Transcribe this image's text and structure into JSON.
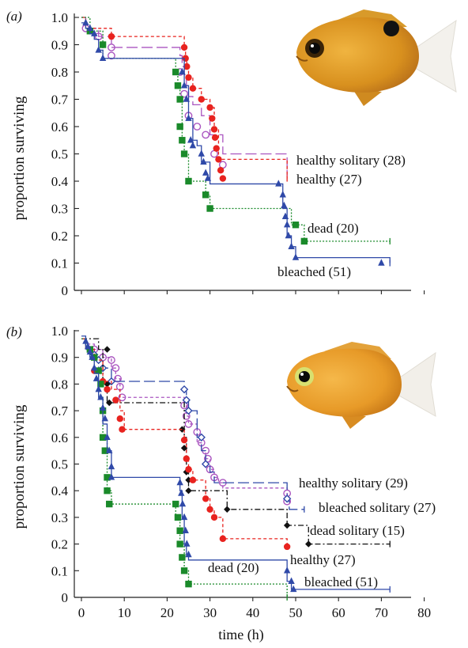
{
  "chart_data": [
    {
      "type": "line",
      "panel_label": "(a)",
      "ylabel": "proportion surviving",
      "ylim": [
        0,
        1.0
      ],
      "yticks": [
        "0",
        "0.1",
        "0.2",
        "0.3",
        "0.4",
        "0.5",
        "0.6",
        "0.7",
        "0.8",
        "0.9",
        "1.0"
      ],
      "xlim": [
        -2,
        80
      ],
      "grid": false,
      "series": [
        {
          "name": "healthy solitary (28)",
          "color": "#aa55c0",
          "dash": "14,5",
          "marker": "circle-open",
          "x": [
            0,
            1,
            4,
            7,
            23,
            23.5,
            24,
            24.5,
            25,
            26,
            28,
            30,
            33,
            48
          ],
          "y": [
            1.0,
            0.96,
            0.93,
            0.89,
            0.86,
            0.82,
            0.79,
            0.75,
            0.71,
            0.68,
            0.64,
            0.57,
            0.5,
            0.43
          ],
          "markers": [
            [
              1,
              0.96
            ],
            [
              4,
              0.93
            ],
            [
              7,
              0.89
            ],
            [
              7,
              0.86
            ],
            [
              23,
              0.8
            ],
            [
              24,
              0.72
            ],
            [
              25,
              0.64
            ],
            [
              27,
              0.6
            ],
            [
              29,
              0.57
            ],
            [
              31,
              0.5
            ],
            [
              33,
              0.46
            ]
          ]
        },
        {
          "name": "healthy (27)",
          "color": "#e8231f",
          "dash": "4,3",
          "marker": "circle-filled",
          "x": [
            0,
            1,
            7,
            24,
            24.3,
            24.6,
            25,
            26,
            28,
            30,
            31,
            32,
            48
          ],
          "y": [
            1.0,
            0.96,
            0.93,
            0.89,
            0.85,
            0.82,
            0.78,
            0.74,
            0.7,
            0.67,
            0.59,
            0.48,
            0.41
          ],
          "markers": [
            [
              7,
              0.93
            ],
            [
              24,
              0.89
            ],
            [
              24.3,
              0.85
            ],
            [
              24.6,
              0.82
            ],
            [
              25,
              0.78
            ],
            [
              26,
              0.74
            ],
            [
              28,
              0.7
            ],
            [
              30,
              0.67
            ],
            [
              30.5,
              0.63
            ],
            [
              31,
              0.59
            ],
            [
              31.2,
              0.56
            ],
            [
              31.5,
              0.52
            ],
            [
              32,
              0.48
            ],
            [
              32.5,
              0.44
            ],
            [
              33,
              0.41
            ]
          ]
        },
        {
          "name": "dead (20)",
          "color": "#1a8a2a",
          "dash": "2,2",
          "marker": "square-filled",
          "x": [
            0,
            2,
            5,
            22,
            22.5,
            23,
            23.5,
            24,
            25,
            29,
            30,
            49,
            50,
            52,
            72
          ],
          "y": [
            1.0,
            0.95,
            0.85,
            0.8,
            0.75,
            0.7,
            0.55,
            0.5,
            0.4,
            0.35,
            0.3,
            0.24,
            0.24,
            0.18,
            0.18
          ],
          "markers": [
            [
              2,
              0.95
            ],
            [
              5,
              0.9
            ],
            [
              22,
              0.8
            ],
            [
              22.5,
              0.75
            ],
            [
              23,
              0.7
            ],
            [
              23,
              0.6
            ],
            [
              23.5,
              0.55
            ],
            [
              24,
              0.5
            ],
            [
              25,
              0.4
            ],
            [
              29,
              0.35
            ],
            [
              30,
              0.3
            ],
            [
              50,
              0.24
            ],
            [
              52,
              0.18
            ]
          ]
        },
        {
          "name": "bleached (51)",
          "color": "#2f49a8",
          "dash": "",
          "marker": "triangle-filled",
          "x": [
            0,
            1,
            2,
            3,
            4,
            5,
            24,
            25,
            26,
            27,
            28,
            30,
            46,
            47,
            48,
            49,
            50,
            70,
            72
          ],
          "y": [
            0.98,
            0.96,
            0.94,
            0.92,
            0.88,
            0.85,
            0.75,
            0.63,
            0.55,
            0.53,
            0.47,
            0.39,
            0.39,
            0.3,
            0.2,
            0.16,
            0.12,
            0.12,
            0.1
          ],
          "markers": [
            [
              1,
              0.98
            ],
            [
              2,
              0.96
            ],
            [
              3,
              0.94
            ],
            [
              4,
              0.88
            ],
            [
              5,
              0.85
            ],
            [
              23.5,
              0.8
            ],
            [
              24,
              0.75
            ],
            [
              24.5,
              0.7
            ],
            [
              25,
              0.63
            ],
            [
              25.5,
              0.55
            ],
            [
              26,
              0.53
            ],
            [
              28,
              0.5
            ],
            [
              28.5,
              0.47
            ],
            [
              29,
              0.43
            ],
            [
              29.5,
              0.41
            ],
            [
              46,
              0.39
            ],
            [
              47,
              0.35
            ],
            [
              47.3,
              0.31
            ],
            [
              47.6,
              0.27
            ],
            [
              48,
              0.24
            ],
            [
              48.3,
              0.2
            ],
            [
              49,
              0.16
            ],
            [
              50,
              0.12
            ],
            [
              70,
              0.1
            ]
          ]
        }
      ],
      "annotations": [
        "healthy solitary (28)",
        "healthy (27)",
        "dead (20)",
        "bleached (51)"
      ]
    },
    {
      "type": "line",
      "panel_label": "(b)",
      "xlabel": "time (h)",
      "ylabel": "proportion surviving",
      "ylim": [
        0,
        1.0
      ],
      "yticks": [
        "0",
        "0.1",
        "0.2",
        "0.3",
        "0.4",
        "0.5",
        "0.6",
        "0.7",
        "0.8",
        "0.9",
        "1.0"
      ],
      "xlim": [
        -2,
        80
      ],
      "xticks": [
        "0",
        "10",
        "20",
        "30",
        "40",
        "50",
        "60",
        "70",
        "80"
      ],
      "grid": false,
      "series": [
        {
          "name": "healthy solitary (29)",
          "color": "#aa55c0",
          "dash": "4,3",
          "marker": "circle-open",
          "x": [
            0,
            1,
            3,
            5,
            7,
            8,
            9,
            24,
            24.5,
            25,
            27,
            28,
            29,
            30,
            31,
            32,
            33,
            48
          ],
          "y": [
            0.97,
            0.95,
            0.93,
            0.9,
            0.86,
            0.82,
            0.75,
            0.72,
            0.68,
            0.65,
            0.58,
            0.55,
            0.52,
            0.48,
            0.45,
            0.43,
            0.41,
            0.38
          ],
          "markers": [
            [
              3,
              0.93
            ],
            [
              5,
              0.9
            ],
            [
              7,
              0.89
            ],
            [
              8,
              0.86
            ],
            [
              8.5,
              0.82
            ],
            [
              9,
              0.79
            ],
            [
              9.5,
              0.75
            ],
            [
              24,
              0.72
            ],
            [
              24.5,
              0.68
            ],
            [
              25,
              0.65
            ],
            [
              27,
              0.62
            ],
            [
              28,
              0.58
            ],
            [
              29,
              0.55
            ],
            [
              29.5,
              0.52
            ],
            [
              30,
              0.48
            ],
            [
              31,
              0.45
            ],
            [
              33,
              0.43
            ],
            [
              48,
              0.39
            ],
            [
              48,
              0.36
            ]
          ]
        },
        {
          "name": "bleached solitary (27)",
          "color": "#2f49a8",
          "dash": "14,5",
          "marker": "diamond-open",
          "x": [
            0,
            1,
            2,
            3,
            4,
            7,
            24,
            24.5,
            25,
            27,
            28,
            29,
            30,
            31,
            48,
            48.5,
            52
          ],
          "y": [
            0.97,
            0.93,
            0.91,
            0.89,
            0.86,
            0.81,
            0.78,
            0.74,
            0.7,
            0.6,
            0.55,
            0.5,
            0.47,
            0.43,
            0.37,
            0.33,
            0.33
          ],
          "markers": [
            [
              3,
              0.91
            ],
            [
              4,
              0.89
            ],
            [
              5,
              0.86
            ],
            [
              7,
              0.81
            ],
            [
              24,
              0.78
            ],
            [
              24.5,
              0.74
            ],
            [
              25,
              0.7
            ],
            [
              28,
              0.6
            ],
            [
              29,
              0.5
            ],
            [
              48,
              0.37
            ]
          ]
        },
        {
          "name": "dead solitary (15)",
          "color": "#111111",
          "dash": "7,3,2,3",
          "marker": "diamond-filled",
          "x": [
            0,
            4,
            5,
            6,
            24,
            24.5,
            25,
            34,
            48,
            53,
            72
          ],
          "y": [
            0.97,
            0.93,
            0.8,
            0.73,
            0.6,
            0.47,
            0.4,
            0.33,
            0.27,
            0.2,
            0.2
          ],
          "markers": [
            [
              6,
              0.93
            ],
            [
              6,
              0.8
            ],
            [
              6.5,
              0.73
            ],
            [
              23.5,
              0.63
            ],
            [
              24,
              0.56
            ],
            [
              24.5,
              0.47
            ],
            [
              25,
              0.44
            ],
            [
              25,
              0.4
            ],
            [
              34,
              0.33
            ],
            [
              48,
              0.27
            ],
            [
              53,
              0.2
            ]
          ]
        },
        {
          "name": "healthy (27)",
          "color": "#e8231f",
          "dash": "4,3",
          "marker": "circle-filled",
          "x": [
            0,
            1,
            3,
            5,
            7,
            9,
            10,
            24,
            24.5,
            25,
            26,
            29,
            30,
            31,
            33,
            48
          ],
          "y": [
            0.97,
            0.93,
            0.89,
            0.81,
            0.78,
            0.7,
            0.63,
            0.59,
            0.52,
            0.48,
            0.44,
            0.37,
            0.33,
            0.3,
            0.22,
            0.19
          ],
          "markers": [
            [
              3,
              0.85
            ],
            [
              5,
              0.81
            ],
            [
              6,
              0.78
            ],
            [
              8,
              0.74
            ],
            [
              9,
              0.67
            ],
            [
              9.5,
              0.63
            ],
            [
              24,
              0.59
            ],
            [
              24.5,
              0.52
            ],
            [
              25,
              0.48
            ],
            [
              26,
              0.44
            ],
            [
              29,
              0.37
            ],
            [
              30,
              0.33
            ],
            [
              31,
              0.3
            ],
            [
              33,
              0.22
            ],
            [
              48,
              0.19
            ]
          ]
        },
        {
          "name": "dead (20)",
          "color": "#1a8a2a",
          "dash": "2,2",
          "marker": "square-filled",
          "x": [
            0,
            1,
            2,
            3,
            4,
            5,
            6,
            7,
            22,
            23,
            24,
            25,
            48
          ],
          "y": [
            0.97,
            0.93,
            0.9,
            0.85,
            0.75,
            0.6,
            0.4,
            0.35,
            0.3,
            0.2,
            0.1,
            0.05,
            0
          ],
          "markers": [
            [
              2,
              0.93
            ],
            [
              3,
              0.9
            ],
            [
              4,
              0.85
            ],
            [
              4.5,
              0.8
            ],
            [
              5,
              0.7
            ],
            [
              5,
              0.6
            ],
            [
              5.5,
              0.55
            ],
            [
              6,
              0.45
            ],
            [
              6,
              0.4
            ],
            [
              6.5,
              0.35
            ],
            [
              22,
              0.35
            ],
            [
              22.5,
              0.3
            ],
            [
              23,
              0.25
            ],
            [
              23,
              0.2
            ],
            [
              23.5,
              0.15
            ],
            [
              24,
              0.1
            ],
            [
              25,
              0.05
            ]
          ]
        },
        {
          "name": "bleached (51)",
          "color": "#2f49a8",
          "dash": "",
          "marker": "triangle-filled",
          "x": [
            0,
            1,
            2,
            3,
            4,
            5,
            6,
            7,
            23,
            23.5,
            24,
            24.5,
            25,
            48,
            49,
            72
          ],
          "y": [
            0.98,
            0.94,
            0.9,
            0.84,
            0.75,
            0.65,
            0.55,
            0.45,
            0.4,
            0.3,
            0.2,
            0.16,
            0.14,
            0.06,
            0.03,
            0.03
          ],
          "markers": [
            [
              1,
              0.96
            ],
            [
              1.5,
              0.94
            ],
            [
              2,
              0.92
            ],
            [
              2.5,
              0.9
            ],
            [
              3,
              0.86
            ],
            [
              3.5,
              0.82
            ],
            [
              4,
              0.78
            ],
            [
              4.5,
              0.75
            ],
            [
              5,
              0.71
            ],
            [
              5.5,
              0.67
            ],
            [
              6,
              0.6
            ],
            [
              6.5,
              0.55
            ],
            [
              7,
              0.49
            ],
            [
              7,
              0.45
            ],
            [
              23,
              0.43
            ],
            [
              23.3,
              0.39
            ],
            [
              23.6,
              0.35
            ],
            [
              24,
              0.3
            ],
            [
              24.3,
              0.25
            ],
            [
              24.6,
              0.2
            ],
            [
              25,
              0.16
            ],
            [
              48,
              0.1
            ],
            [
              49,
              0.06
            ],
            [
              49.5,
              0.03
            ]
          ]
        }
      ],
      "annotations": [
        "healthy solitary (29)",
        "bleached solitary (27)",
        "dead solitary (15)",
        "healthy (27)",
        "dead (20)",
        "bleached (51)"
      ]
    }
  ]
}
